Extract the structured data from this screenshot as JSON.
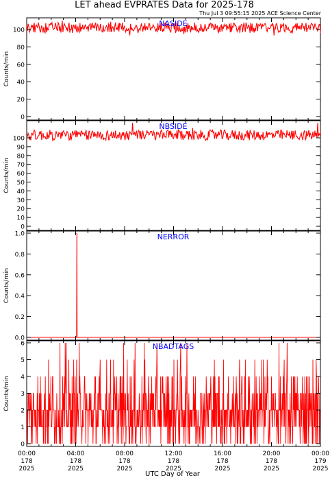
{
  "title": "LET ahead EVPRATES Data for 2025-178",
  "timestamp": "Thu Jul  3 09:55:15 2025 ACE Science Center",
  "xlabel": "UTC Day of Year",
  "colors": {
    "data": "#ff0000",
    "label": "#0000ff",
    "axes": "#000000"
  },
  "chart_data": [
    {
      "type": "line",
      "panel_label": "NASIDE",
      "ylabel": "Counts/min",
      "ylim": [
        0,
        115
      ],
      "yticks": [
        "0",
        "20",
        "40",
        "60",
        "80",
        "100"
      ],
      "xlim": [
        0,
        24
      ],
      "xticks": [
        {
          "time": "00:00",
          "doy": "178",
          "year": "2025"
        },
        {
          "time": "04:00",
          "doy": "178",
          "year": "2025"
        },
        {
          "time": "08:00",
          "doy": "178",
          "year": "2025"
        },
        {
          "time": "12:00",
          "doy": "178",
          "year": "2025"
        },
        {
          "time": "16:00",
          "doy": "178",
          "year": "2025"
        },
        {
          "time": "20:00",
          "doy": "178",
          "year": "2025"
        },
        {
          "time": "00:00",
          "doy": "179",
          "year": "2025"
        }
      ],
      "series": [
        {
          "mean": 102,
          "spread": 6,
          "min": 91,
          "max": 113
        }
      ]
    },
    {
      "type": "line",
      "panel_label": "NBSIDE",
      "ylabel": "Counts/min",
      "ylim": [
        0,
        115
      ],
      "yticks": [
        "0",
        "10",
        "20",
        "30",
        "40",
        "50",
        "60",
        "70",
        "80",
        "90",
        "100"
      ],
      "xlim": [
        0,
        24
      ],
      "series": [
        {
          "mean": 103,
          "spread": 6,
          "min": 94,
          "max": 118
        }
      ]
    },
    {
      "type": "line",
      "panel_label": "NERROR",
      "ylabel": "Counts/min",
      "ylim": [
        0,
        1.0
      ],
      "yticks": [
        "0.0",
        "0.2",
        "0.4",
        "0.6",
        "0.8",
        "1.0"
      ],
      "xlim": [
        0,
        24
      ],
      "series": [
        {
          "baseline": 0,
          "spikes": [
            {
              "hour": 4.1,
              "value": 1
            }
          ]
        }
      ]
    },
    {
      "type": "line",
      "panel_label": "NBADTAGS",
      "ylabel": "Counts/min",
      "ylim": [
        0,
        6
      ],
      "yticks": [
        "0",
        "1",
        "2",
        "3",
        "4",
        "5",
        "6"
      ],
      "xlim": [
        0,
        24
      ],
      "series": [
        {
          "discrete_values": [
            0,
            1,
            2,
            3,
            4,
            5,
            6
          ],
          "typical": 2
        }
      ]
    }
  ]
}
